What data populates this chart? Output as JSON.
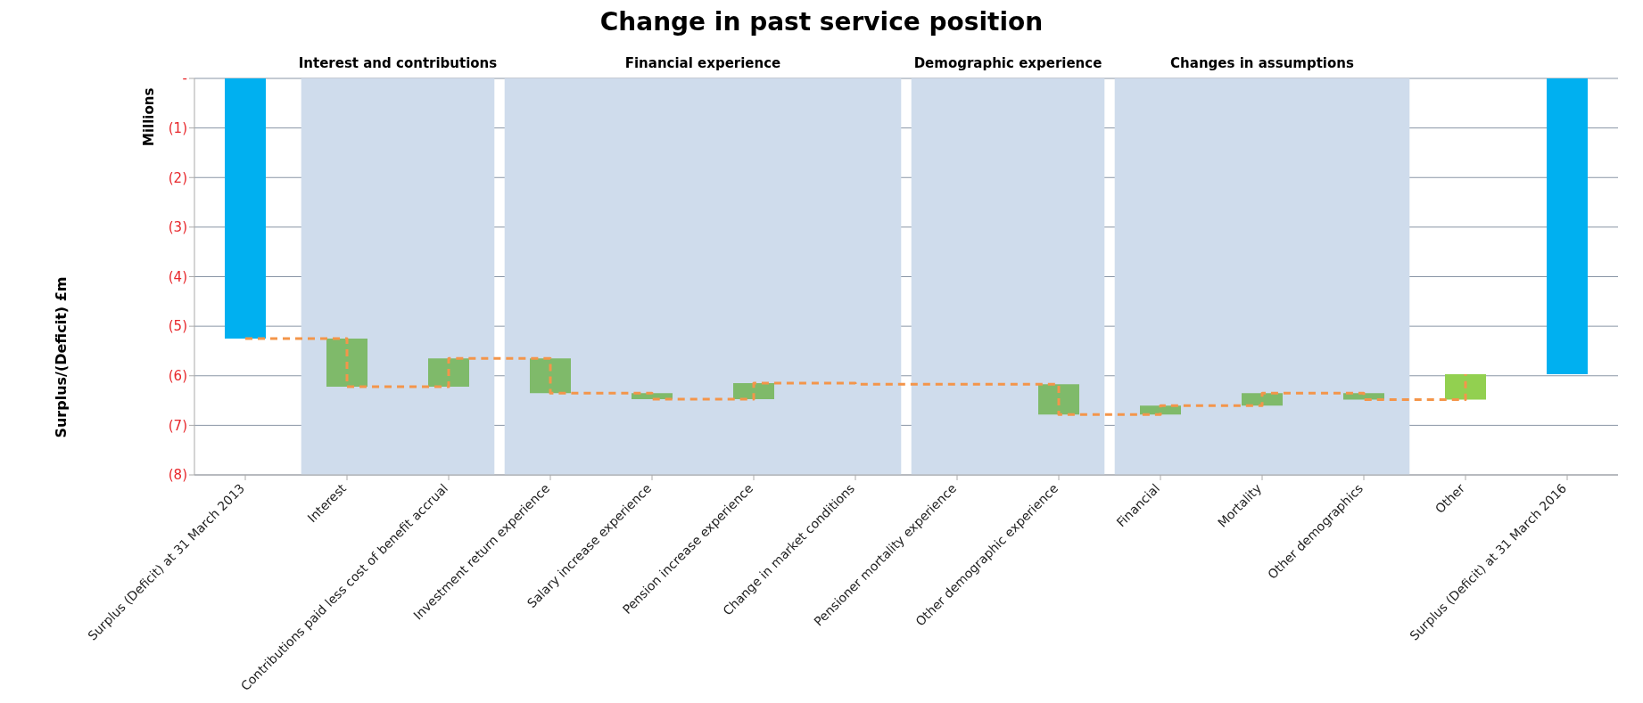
{
  "chart_data": {
    "type": "bar",
    "title": "Change in past service position",
    "ylabel": "Surplus/(Deficit)  £m",
    "annotations": [
      "Millions"
    ],
    "categories": [
      "Surplus (Deficit) at 31 March 2013",
      "Interest",
      "Contributions paid less cost of benefit accrual",
      "Investment return experience",
      "Salary increase experience",
      "Pension increase experience",
      "Change in market conditions",
      "Pensioner mortality experience",
      "Other demographic experience",
      "Financial",
      "Mortality",
      "Other demographics",
      "Other",
      "Surplus (Deficit) at 31 March 2016"
    ],
    "series": [
      {
        "type": "step",
        "color": "#f4954a",
        "line_style": "dashed",
        "values": [
          -5.25,
          -6.22,
          -5.65,
          -6.35,
          -6.47,
          -6.15,
          -6.17,
          -6.17,
          -6.78,
          -6.6,
          -6.35,
          -6.48,
          -5.97,
          null
        ]
      },
      {
        "values": [
          -5.25,
          -0.97,
          0.57,
          -0.7,
          -0.12,
          0.32,
          null,
          null,
          -0.61,
          0.18,
          0.25,
          -0.13,
          0.51,
          -5.97
        ],
        "base": [
          0,
          -5.25,
          -6.22,
          -5.65,
          -6.35,
          -6.47,
          null,
          null,
          -6.17,
          -6.78,
          -6.6,
          -6.35,
          -6.48,
          0
        ],
        "colors": [
          "#00b0f0",
          "#7fba6a",
          "#7fba6a",
          "#7fba6a",
          "#7fba6a",
          "#7fba6a",
          "#7fba6a",
          "#7fba6a",
          "#7fba6a",
          "#7fba6a",
          "#7fba6a",
          "#7fba6a",
          "#92d050",
          "#00b0f0"
        ]
      }
    ],
    "ylim": [
      -8,
      0
    ],
    "yticks": [
      {
        "value": 0,
        "label": "-"
      },
      {
        "value": -1,
        "label": "(1)"
      },
      {
        "value": -2,
        "label": "(2)"
      },
      {
        "value": -3,
        "label": "(3)"
      },
      {
        "value": -4,
        "label": "(4)"
      },
      {
        "value": -5,
        "label": "(5)"
      },
      {
        "value": -6,
        "label": "(6)"
      },
      {
        "value": -7,
        "label": "(7)"
      },
      {
        "value": -8,
        "label": "(8)"
      }
    ],
    "grid": "y",
    "bands": [
      {
        "axis": "x",
        "from": "Interest",
        "to": "Contributions paid less cost of benefit accrual",
        "label": "Interest and contributions",
        "color": "#cfdcec"
      },
      {
        "axis": "x",
        "from": "Investment return experience",
        "to": "Change in market conditions",
        "label": "Financial experience",
        "color": "#cfdcec"
      },
      {
        "axis": "x",
        "from": "Pensioner mortality experience",
        "to": "Other demographic experience",
        "label": "Demographic experience",
        "color": "#cfdcec"
      },
      {
        "axis": "x",
        "from": "Financial",
        "to": "Other demographics",
        "label": "Changes in assumptions",
        "color": "#cfdcec"
      }
    ]
  }
}
